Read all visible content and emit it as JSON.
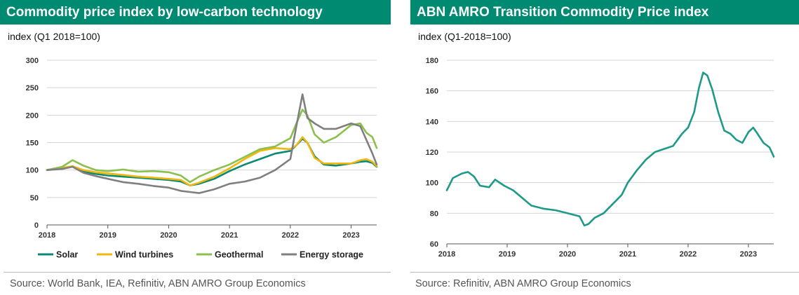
{
  "colors": {
    "brand": "#008a72",
    "solar": "#0a8a74",
    "wind": "#f2b70f",
    "geothermal": "#8cc04d",
    "storage": "#7f7f7f",
    "transition": "#1d9a88"
  },
  "left": {
    "title": "Commodity price index by low-carbon technology",
    "unit": "index (Q1 2018=100)",
    "source": "Source:  World Bank, IEA, Refinitiv, ABN AMRO Group Economics"
  },
  "right": {
    "title": "ABN AMRO Transition Commodity Price index",
    "unit": "index (Q1-2018=100)",
    "source": "Source: Refinitiv, ABN AMRO Group Economics"
  },
  "chart_data": [
    {
      "type": "line",
      "title": "Commodity price index by low-carbon technology",
      "ylabel": "index (Q1 2018=100)",
      "xlim": [
        2018.0,
        2023.42
      ],
      "ylim": [
        0,
        300
      ],
      "yticks": [
        0,
        50,
        100,
        150,
        200,
        250,
        300
      ],
      "xticks": [
        2018,
        2019,
        2020,
        2021,
        2022,
        2023
      ],
      "grid": "horizontal",
      "legend": "bottom",
      "x": [
        2018.0,
        2018.25,
        2018.42,
        2018.6,
        2018.8,
        2019.0,
        2019.25,
        2019.5,
        2019.75,
        2020.0,
        2020.2,
        2020.35,
        2020.5,
        2020.75,
        2021.0,
        2021.25,
        2021.5,
        2021.75,
        2022.0,
        2022.1,
        2022.2,
        2022.28,
        2022.4,
        2022.55,
        2022.75,
        2023.0,
        2023.15,
        2023.25,
        2023.35,
        2023.42
      ],
      "series": [
        {
          "name": "Solar",
          "color_key": "solar",
          "values": [
            100,
            104,
            106,
            97,
            93,
            90,
            88,
            86,
            84,
            82,
            79,
            72,
            75,
            84,
            98,
            110,
            120,
            130,
            135,
            145,
            157,
            150,
            125,
            110,
            108,
            112,
            115,
            116,
            113,
            106
          ]
        },
        {
          "name": "Wind turbines",
          "color_key": "wind",
          "values": [
            100,
            104,
            107,
            100,
            96,
            94,
            91,
            88,
            86,
            84,
            82,
            72,
            77,
            88,
            103,
            120,
            135,
            140,
            138,
            145,
            160,
            150,
            122,
            112,
            112,
            112,
            118,
            120,
            115,
            107
          ]
        },
        {
          "name": "Geothermal",
          "color_key": "geothermal",
          "values": [
            100,
            106,
            118,
            108,
            100,
            98,
            101,
            97,
            98,
            96,
            90,
            78,
            88,
            100,
            110,
            124,
            138,
            143,
            158,
            185,
            210,
            200,
            165,
            150,
            160,
            182,
            185,
            168,
            160,
            140
          ]
        },
        {
          "name": "Energy storage",
          "color_key": "storage",
          "values": [
            100,
            102,
            106,
            95,
            89,
            84,
            78,
            75,
            71,
            68,
            62,
            60,
            58,
            65,
            75,
            79,
            86,
            100,
            120,
            180,
            238,
            195,
            185,
            175,
            175,
            185,
            180,
            155,
            130,
            110
          ]
        }
      ]
    },
    {
      "type": "line",
      "title": "ABN AMRO Transition Commodity Price index",
      "ylabel": "index (Q1-2018=100)",
      "xlim": [
        2018.0,
        2023.42
      ],
      "ylim": [
        60,
        180
      ],
      "yticks": [
        60,
        80,
        100,
        120,
        140,
        160,
        180
      ],
      "xticks": [
        2018,
        2019,
        2020,
        2021,
        2022,
        2023
      ],
      "grid": "horizontal",
      "legend": "none",
      "x": [
        2018.0,
        2018.1,
        2018.25,
        2018.35,
        2018.45,
        2018.55,
        2018.7,
        2018.8,
        2018.95,
        2019.1,
        2019.25,
        2019.4,
        2019.6,
        2019.8,
        2020.0,
        2020.1,
        2020.2,
        2020.28,
        2020.35,
        2020.45,
        2020.6,
        2020.75,
        2020.9,
        2021.0,
        2021.15,
        2021.3,
        2021.45,
        2021.6,
        2021.75,
        2021.9,
        2022.0,
        2022.1,
        2022.18,
        2022.25,
        2022.32,
        2022.4,
        2022.5,
        2022.6,
        2022.7,
        2022.8,
        2022.9,
        2023.0,
        2023.08,
        2023.15,
        2023.25,
        2023.35,
        2023.42
      ],
      "series": [
        {
          "name": "",
          "color_key": "transition",
          "values": [
            95,
            103,
            106,
            107,
            104,
            98,
            97,
            102,
            98,
            95,
            90,
            85,
            83,
            82,
            80,
            79,
            78,
            72,
            73,
            77,
            80,
            86,
            92,
            100,
            108,
            115,
            120,
            122,
            124,
            132,
            136,
            146,
            162,
            172,
            170,
            161,
            146,
            134,
            132,
            128,
            126,
            133,
            136,
            132,
            126,
            123,
            117
          ]
        }
      ]
    }
  ]
}
